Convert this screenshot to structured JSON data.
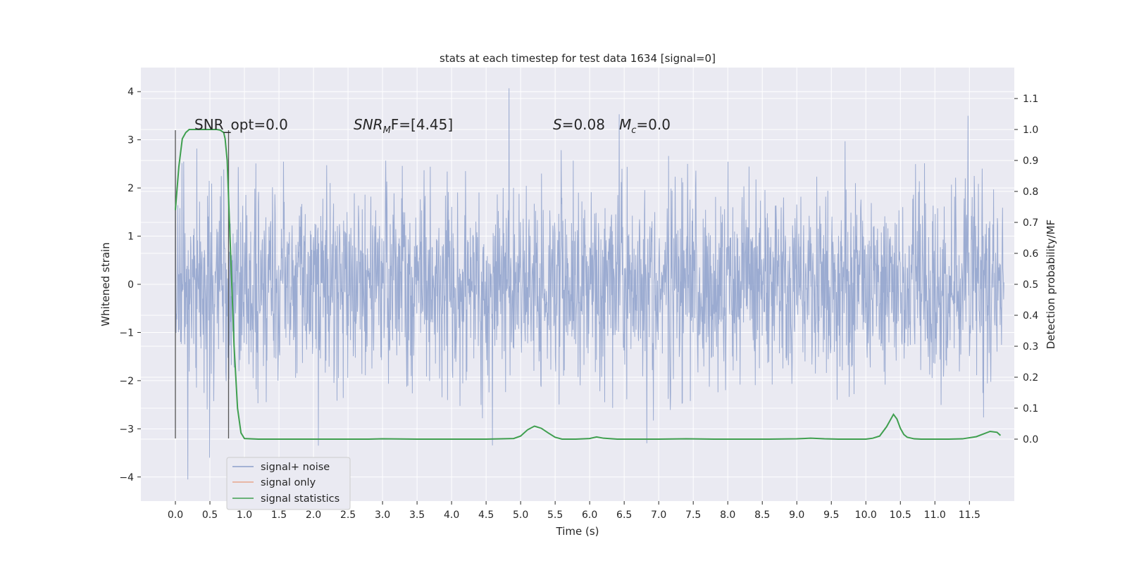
{
  "chart_data": {
    "type": "line",
    "title": "stats at each timestep for test data 1634 [signal=0]",
    "xlabel": "Time (s)",
    "ylabel_left": "Whitened strain",
    "ylabel_right": "Detection probability/MF",
    "xlim": [
      -0.5,
      12.15
    ],
    "ylim_left": [
      -4.5,
      4.5
    ],
    "ylim_right": [
      -0.2,
      1.2
    ],
    "x_ticks": [
      0.0,
      0.5,
      1.0,
      1.5,
      2.0,
      2.5,
      3.0,
      3.5,
      4.0,
      4.5,
      5.0,
      5.5,
      6.0,
      6.5,
      7.0,
      7.5,
      8.0,
      8.5,
      9.0,
      9.5,
      10.0,
      10.5,
      11.0,
      11.5
    ],
    "x_tick_labels": [
      "0.0",
      "0.5",
      "1.0",
      "1.5",
      "2.0",
      "2.5",
      "3.0",
      "3.5",
      "4.0",
      "4.5",
      "5.0",
      "5.5",
      "6.0",
      "6.5",
      "7.0",
      "7.5",
      "8.0",
      "8.5",
      "9.0",
      "9.5",
      "10.0",
      "10.5",
      "11.0",
      "11.5"
    ],
    "y_left_ticks": [
      -4,
      -3,
      -2,
      -1,
      0,
      1,
      2,
      3,
      4
    ],
    "y_left_tick_labels": [
      "−4",
      "−3",
      "−2",
      "−1",
      "0",
      "1",
      "2",
      "3",
      "4"
    ],
    "y_right_ticks": [
      0.0,
      0.1,
      0.2,
      0.3,
      0.4,
      0.5,
      0.6,
      0.7,
      0.8,
      0.9,
      1.0,
      1.1
    ],
    "y_right_tick_labels": [
      "0.0",
      "0.1",
      "0.2",
      "0.3",
      "0.4",
      "0.5",
      "0.6",
      "0.7",
      "0.8",
      "0.9",
      "1.0",
      "1.1"
    ],
    "grid": true,
    "background": "#eaeaf2",
    "legend": {
      "placement": "lower-left",
      "entries": [
        {
          "label": "signal+ noise",
          "color": "#8da0cb"
        },
        {
          "label": "signal only",
          "color": "#e8a68c"
        },
        {
          "label": "signal statistics",
          "color": "#3f9f4f"
        }
      ]
    },
    "annotations": {
      "snr_opt": "SNR_opt=0.0",
      "snr_mf": {
        "main": "SNR",
        "sub": "M",
        "tail": "F=[4.45]"
      },
      "s_stat": {
        "main": "S",
        "tail": "=0.08"
      },
      "mc_stat": {
        "main": "M",
        "sub": "c",
        "tail": "=0.0"
      }
    },
    "vertical_lines": [
      0.0,
      0.77
    ],
    "noise_series": {
      "name": "signal+ noise",
      "color": "#8da0cb",
      "x_range": [
        0.0,
        12.0
      ],
      "std": 1.0,
      "num_samples": 2400,
      "notable_peaks": [
        [
          0.18,
          -4.05
        ],
        [
          2.07,
          -3.35
        ],
        [
          4.83,
          4.07
        ],
        [
          6.83,
          -3.3
        ],
        [
          11.48,
          3.5
        ],
        [
          0.0,
          2.45
        ]
      ]
    },
    "statistics_series": {
      "name": "signal statistics",
      "color": "#3f9f4f",
      "x": [
        0.0,
        0.05,
        0.1,
        0.15,
        0.2,
        0.3,
        0.4,
        0.5,
        0.6,
        0.65,
        0.7,
        0.72,
        0.75,
        0.8,
        0.85,
        0.9,
        0.95,
        1.0,
        1.2,
        1.5,
        2.0,
        2.5,
        2.8,
        3.0,
        3.5,
        4.0,
        4.5,
        4.9,
        5.0,
        5.1,
        5.2,
        5.3,
        5.4,
        5.5,
        5.6,
        5.8,
        6.0,
        6.1,
        6.2,
        6.4,
        6.6,
        7.0,
        7.4,
        7.8,
        8.2,
        8.6,
        9.0,
        9.2,
        9.4,
        9.6,
        9.8,
        10.0,
        10.1,
        10.2,
        10.3,
        10.4,
        10.45,
        10.5,
        10.55,
        10.6,
        10.7,
        10.8,
        11.0,
        11.2,
        11.4,
        11.6,
        11.8,
        11.9,
        11.95
      ],
      "y": [
        0.74,
        0.88,
        0.97,
        0.99,
        1.0,
        1.0,
        1.0,
        1.0,
        1.0,
        0.998,
        0.99,
        0.97,
        0.9,
        0.6,
        0.3,
        0.1,
        0.02,
        0.002,
        0.0,
        0.0,
        0.0,
        0.0,
        0.0,
        0.001,
        0.0,
        0.0,
        0.0,
        0.002,
        0.01,
        0.03,
        0.042,
        0.035,
        0.02,
        0.006,
        0.0,
        0.0,
        0.002,
        0.007,
        0.003,
        0.0,
        0.0,
        0.0,
        0.001,
        0.0,
        0.0,
        0.0,
        0.001,
        0.003,
        0.001,
        0.0,
        0.0,
        0.0,
        0.003,
        0.01,
        0.04,
        0.08,
        0.065,
        0.035,
        0.015,
        0.006,
        0.001,
        0.0,
        0.0,
        0.0,
        0.001,
        0.008,
        0.025,
        0.022,
        0.012
      ]
    }
  }
}
